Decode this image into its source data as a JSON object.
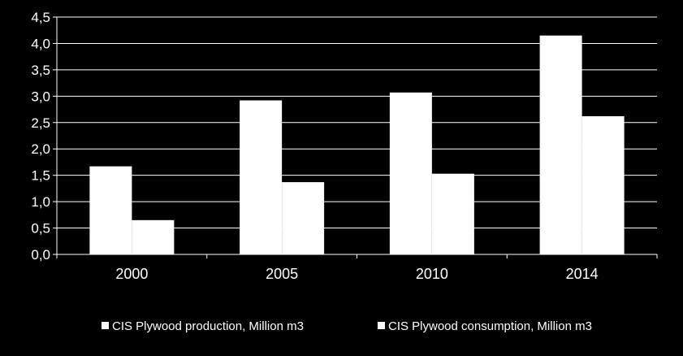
{
  "chart_data": {
    "type": "bar",
    "title": "",
    "xlabel": "",
    "ylabel": "",
    "categories": [
      "2000",
      "2005",
      "2010",
      "2014"
    ],
    "series": [
      {
        "name": "CIS Plywood production, Million m3",
        "values": [
          1.67,
          2.92,
          3.07,
          4.15
        ],
        "color": "#ffffff"
      },
      {
        "name": "CIS Plywood consumption, Million m3",
        "values": [
          0.65,
          1.37,
          1.53,
          2.62
        ],
        "color": "#ffffff"
      }
    ],
    "ylim": [
      0,
      4.5
    ],
    "yticks": [
      "0,0",
      "0,5",
      "1,0",
      "1,5",
      "2,0",
      "2,5",
      "3,0",
      "3,5",
      "4,0",
      "4,5"
    ],
    "grid": true,
    "legend_position": "bottom",
    "background": "#000000",
    "axis_color": "#ffffff"
  }
}
